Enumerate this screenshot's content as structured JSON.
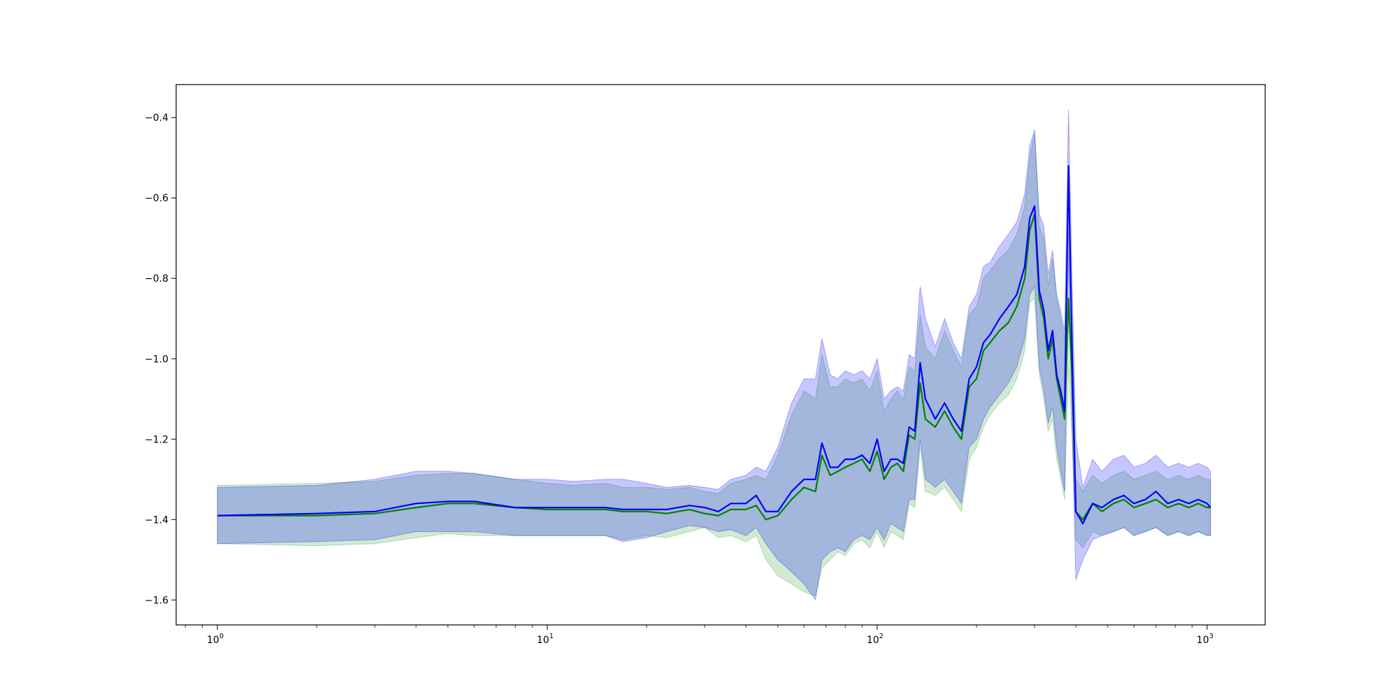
{
  "chart_data": {
    "type": "line",
    "title": "",
    "xlabel": "",
    "ylabel": "",
    "xscale": "log",
    "xlim": [
      0.75,
      1500
    ],
    "ylim": [
      -1.662,
      -0.318
    ],
    "grid": false,
    "x_ticks": [
      {
        "value": 1,
        "base": "10",
        "exp": "0"
      },
      {
        "value": 10,
        "base": "10",
        "exp": "1"
      },
      {
        "value": 100,
        "base": "10",
        "exp": "2"
      },
      {
        "value": 1000,
        "base": "10",
        "exp": "3"
      }
    ],
    "y_ticks": [
      {
        "value": -0.4,
        "label": "−0.4"
      },
      {
        "value": -0.6,
        "label": "−0.6"
      },
      {
        "value": -0.8,
        "label": "−0.8"
      },
      {
        "value": -1.0,
        "label": "−1.0"
      },
      {
        "value": -1.2,
        "label": "−1.2"
      },
      {
        "value": -1.4,
        "label": "−1.4"
      },
      {
        "value": -1.6,
        "label": "−1.6"
      }
    ],
    "series": [
      {
        "color": "#008000",
        "band_color": "#2ca02c",
        "x": [
          1,
          2,
          3,
          4,
          5,
          6,
          8,
          10,
          12,
          15,
          17,
          20,
          23,
          27,
          30,
          33,
          36,
          40,
          43,
          46,
          50,
          55,
          60,
          65,
          68,
          72,
          76,
          80,
          85,
          90,
          95,
          100,
          105,
          110,
          115,
          120,
          125,
          130,
          135,
          140,
          150,
          160,
          170,
          180,
          190,
          200,
          210,
          220,
          235,
          250,
          265,
          280,
          290,
          300,
          310,
          320,
          330,
          340,
          350,
          360,
          370,
          380,
          390,
          400,
          420,
          450,
          480,
          520,
          560,
          600,
          650,
          700,
          760,
          820,
          880,
          940,
          1000,
          1024
        ],
        "mean": [
          -1.39,
          -1.39,
          -1.385,
          -1.37,
          -1.36,
          -1.36,
          -1.37,
          -1.375,
          -1.375,
          -1.375,
          -1.38,
          -1.38,
          -1.385,
          -1.375,
          -1.385,
          -1.39,
          -1.375,
          -1.375,
          -1.365,
          -1.4,
          -1.39,
          -1.35,
          -1.32,
          -1.33,
          -1.24,
          -1.29,
          -1.28,
          -1.27,
          -1.26,
          -1.25,
          -1.28,
          -1.23,
          -1.3,
          -1.27,
          -1.26,
          -1.28,
          -1.19,
          -1.2,
          -1.06,
          -1.15,
          -1.17,
          -1.13,
          -1.17,
          -1.2,
          -1.07,
          -1.05,
          -0.98,
          -0.96,
          -0.93,
          -0.91,
          -0.87,
          -0.8,
          -0.68,
          -0.64,
          -0.85,
          -0.9,
          -1.0,
          -0.95,
          -1.05,
          -1.1,
          -1.15,
          -0.85,
          -1.05,
          -1.38,
          -1.4,
          -1.36,
          -1.38,
          -1.36,
          -1.35,
          -1.37,
          -1.36,
          -1.35,
          -1.37,
          -1.36,
          -1.37,
          -1.36,
          -1.37,
          -1.37
        ],
        "lower": [
          -1.46,
          -1.465,
          -1.46,
          -1.445,
          -1.435,
          -1.44,
          -1.44,
          -1.44,
          -1.44,
          -1.44,
          -1.45,
          -1.44,
          -1.445,
          -1.43,
          -1.42,
          -1.445,
          -1.44,
          -1.455,
          -1.44,
          -1.5,
          -1.54,
          -1.56,
          -1.58,
          -1.59,
          -1.52,
          -1.5,
          -1.48,
          -1.49,
          -1.46,
          -1.45,
          -1.47,
          -1.43,
          -1.47,
          -1.43,
          -1.44,
          -1.45,
          -1.36,
          -1.37,
          -1.22,
          -1.33,
          -1.34,
          -1.32,
          -1.35,
          -1.38,
          -1.25,
          -1.22,
          -1.17,
          -1.14,
          -1.11,
          -1.09,
          -1.05,
          -0.98,
          -0.86,
          -0.85,
          -1.04,
          -1.1,
          -1.18,
          -1.15,
          -1.25,
          -1.3,
          -1.35,
          -1.02,
          -1.2,
          -1.45,
          -1.47,
          -1.43,
          -1.44,
          -1.43,
          -1.42,
          -1.44,
          -1.43,
          -1.42,
          -1.44,
          -1.43,
          -1.44,
          -1.43,
          -1.44,
          -1.44
        ],
        "upper": [
          -1.315,
          -1.31,
          -1.305,
          -1.29,
          -1.285,
          -1.285,
          -1.3,
          -1.31,
          -1.315,
          -1.31,
          -1.32,
          -1.32,
          -1.325,
          -1.32,
          -1.33,
          -1.335,
          -1.31,
          -1.3,
          -1.29,
          -1.3,
          -1.24,
          -1.14,
          -1.08,
          -1.1,
          -0.99,
          -1.07,
          -1.07,
          -1.05,
          -1.06,
          -1.05,
          -1.08,
          -1.03,
          -1.13,
          -1.1,
          -1.08,
          -1.1,
          -1.02,
          -1.03,
          -0.89,
          -0.97,
          -1.0,
          -0.93,
          -0.98,
          -1.02,
          -0.89,
          -0.87,
          -0.8,
          -0.78,
          -0.75,
          -0.73,
          -0.69,
          -0.62,
          -0.5,
          -0.44,
          -0.67,
          -0.7,
          -0.82,
          -0.75,
          -0.85,
          -0.9,
          -0.95,
          -0.68,
          -0.9,
          -1.3,
          -1.33,
          -1.29,
          -1.31,
          -1.29,
          -1.28,
          -1.3,
          -1.29,
          -1.28,
          -1.3,
          -1.29,
          -1.3,
          -1.29,
          -1.3,
          -1.3
        ]
      },
      {
        "color": "#0000ff",
        "band_color": "#0000ff",
        "x": [
          1,
          2,
          3,
          4,
          5,
          6,
          8,
          10,
          12,
          15,
          17,
          20,
          23,
          27,
          30,
          33,
          36,
          40,
          43,
          46,
          50,
          55,
          60,
          65,
          68,
          72,
          76,
          80,
          85,
          90,
          95,
          100,
          105,
          110,
          115,
          120,
          125,
          130,
          135,
          140,
          150,
          160,
          170,
          180,
          190,
          200,
          210,
          220,
          235,
          250,
          265,
          280,
          290,
          300,
          310,
          320,
          330,
          340,
          350,
          360,
          370,
          380,
          390,
          400,
          420,
          450,
          480,
          520,
          560,
          600,
          650,
          700,
          760,
          820,
          880,
          940,
          1000,
          1024
        ],
        "mean": [
          -1.39,
          -1.385,
          -1.38,
          -1.36,
          -1.355,
          -1.355,
          -1.37,
          -1.37,
          -1.37,
          -1.37,
          -1.375,
          -1.375,
          -1.375,
          -1.365,
          -1.37,
          -1.38,
          -1.36,
          -1.36,
          -1.34,
          -1.38,
          -1.38,
          -1.33,
          -1.3,
          -1.3,
          -1.21,
          -1.27,
          -1.27,
          -1.25,
          -1.25,
          -1.24,
          -1.26,
          -1.2,
          -1.28,
          -1.25,
          -1.25,
          -1.26,
          -1.17,
          -1.18,
          -1.01,
          -1.1,
          -1.15,
          -1.11,
          -1.15,
          -1.18,
          -1.05,
          -1.02,
          -0.96,
          -0.94,
          -0.9,
          -0.87,
          -0.84,
          -0.77,
          -0.65,
          -0.62,
          -0.83,
          -0.88,
          -0.98,
          -0.93,
          -1.04,
          -1.08,
          -1.13,
          -0.52,
          -1.0,
          -1.38,
          -1.41,
          -1.36,
          -1.37,
          -1.35,
          -1.34,
          -1.36,
          -1.35,
          -1.33,
          -1.36,
          -1.35,
          -1.36,
          -1.35,
          -1.36,
          -1.37
        ],
        "lower": [
          -1.46,
          -1.455,
          -1.45,
          -1.43,
          -1.43,
          -1.43,
          -1.44,
          -1.44,
          -1.44,
          -1.44,
          -1.455,
          -1.445,
          -1.43,
          -1.415,
          -1.42,
          -1.43,
          -1.425,
          -1.44,
          -1.42,
          -1.46,
          -1.5,
          -1.53,
          -1.56,
          -1.6,
          -1.5,
          -1.48,
          -1.47,
          -1.48,
          -1.45,
          -1.44,
          -1.45,
          -1.42,
          -1.45,
          -1.41,
          -1.42,
          -1.43,
          -1.35,
          -1.35,
          -1.2,
          -1.3,
          -1.32,
          -1.3,
          -1.33,
          -1.36,
          -1.22,
          -1.2,
          -1.15,
          -1.12,
          -1.09,
          -1.06,
          -1.02,
          -0.95,
          -0.84,
          -0.82,
          -1.02,
          -1.08,
          -1.16,
          -1.12,
          -1.22,
          -1.28,
          -1.33,
          -0.74,
          -1.18,
          -1.55,
          -1.5,
          -1.45,
          -1.44,
          -1.43,
          -1.42,
          -1.44,
          -1.43,
          -1.42,
          -1.44,
          -1.43,
          -1.44,
          -1.43,
          -1.44,
          -1.44
        ],
        "upper": [
          -1.32,
          -1.315,
          -1.3,
          -1.28,
          -1.28,
          -1.285,
          -1.3,
          -1.3,
          -1.305,
          -1.3,
          -1.3,
          -1.31,
          -1.32,
          -1.315,
          -1.32,
          -1.325,
          -1.3,
          -1.29,
          -1.27,
          -1.28,
          -1.22,
          -1.11,
          -1.05,
          -1.05,
          -0.95,
          -1.04,
          -1.05,
          -1.03,
          -1.04,
          -1.03,
          -1.05,
          -1.0,
          -1.1,
          -1.08,
          -1.07,
          -1.08,
          -0.99,
          -1.0,
          -0.82,
          -0.9,
          -0.97,
          -0.9,
          -0.96,
          -1.0,
          -0.87,
          -0.84,
          -0.77,
          -0.76,
          -0.72,
          -0.69,
          -0.66,
          -0.59,
          -0.47,
          -0.43,
          -0.64,
          -0.67,
          -0.79,
          -0.73,
          -0.84,
          -0.88,
          -0.93,
          -0.38,
          -0.82,
          -1.2,
          -1.32,
          -1.25,
          -1.28,
          -1.25,
          -1.24,
          -1.27,
          -1.26,
          -1.24,
          -1.27,
          -1.26,
          -1.27,
          -1.26,
          -1.27,
          -1.28
        ]
      }
    ]
  }
}
